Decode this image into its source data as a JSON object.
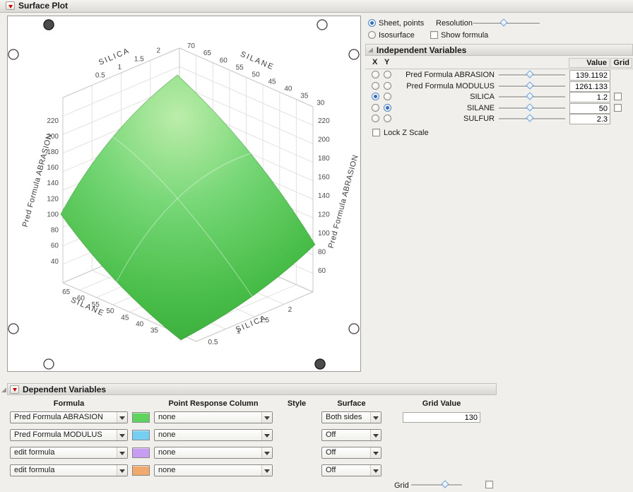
{
  "window": {
    "title": "Surface Plot"
  },
  "controls": {
    "sheet_points": "Sheet, points",
    "sheet_points_selected": true,
    "isosurface": "Isosurface",
    "resolution": "Resolution",
    "show_formula": "Show formula",
    "lock_z": "Lock Z Scale"
  },
  "independent": {
    "title": "Independent Variables",
    "cols": {
      "x": "X",
      "y": "Y",
      "value": "Value",
      "grid": "Grid"
    },
    "rows": [
      {
        "name": "Pred Formula ABRASION",
        "value": "139.1192",
        "x": false,
        "y": false,
        "grid": false
      },
      {
        "name": "Pred Formula MODULUS",
        "value": "1261.133",
        "x": false,
        "y": false,
        "grid": false
      },
      {
        "name": "SILICA",
        "value": "1.2",
        "x": true,
        "y": false,
        "grid": true
      },
      {
        "name": "SILANE",
        "value": "50",
        "x": false,
        "y": true,
        "grid": true
      },
      {
        "name": "SULFUR",
        "value": "2.3",
        "x": false,
        "y": false,
        "grid": false
      }
    ]
  },
  "dependent": {
    "title": "Dependent Variables",
    "headers": {
      "formula": "Formula",
      "point": "Point Response Column",
      "style": "Style",
      "surface": "Surface",
      "grid_value": "Grid Value"
    },
    "rows": [
      {
        "formula": "Pred Formula ABRASION",
        "swatch": "#5fd35f",
        "point_response": "none",
        "surface": "Both sides",
        "grid_value": "130"
      },
      {
        "formula": "Pred Formula MODULUS",
        "swatch": "#74cff2",
        "point_response": "none",
        "surface": "Off"
      },
      {
        "formula": "edit formula",
        "swatch": "#c79df2",
        "point_response": "none",
        "surface": "Off"
      },
      {
        "formula": "edit formula",
        "swatch": "#f2a96e",
        "point_response": "none",
        "surface": "Off"
      }
    ],
    "grid_label": "Grid"
  },
  "chart_data": {
    "type": "surface",
    "title": "",
    "x_axis": {
      "label": "SILICA",
      "range": [
        0.5,
        2
      ],
      "tick_labels": [
        "0.5",
        "1",
        "1.5",
        "2"
      ]
    },
    "y_axis": {
      "label": "SILANE",
      "range": [
        30,
        70
      ],
      "tick_labels_top": [
        "70",
        "65",
        "60",
        "55",
        "50",
        "45",
        "40",
        "35",
        "30"
      ],
      "tick_labels_bottom": [
        "35",
        "40",
        "45",
        "50",
        "55",
        "60",
        "65"
      ]
    },
    "z_axis": {
      "label": "Pred Formula ABRASION",
      "range": [
        40,
        220
      ],
      "tick_labels_left": [
        "220",
        "200",
        "180",
        "160",
        "140",
        "120",
        "100",
        "80",
        "60",
        "40"
      ],
      "tick_labels_right": [
        "220",
        "200",
        "180",
        "160",
        "140",
        "120",
        "100",
        "80",
        "60"
      ]
    },
    "surface_color": "#4ec44e",
    "grid": true,
    "description": "Green dome-shaped response surface of Pred Formula ABRASION (about 40-220) over SILICA (0.5-2) and SILANE (30-70), peaking near the back corner around 220"
  }
}
